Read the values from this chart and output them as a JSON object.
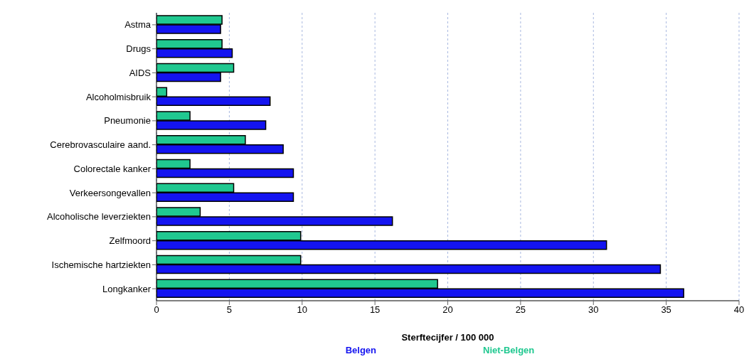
{
  "chart_data": {
    "type": "bar",
    "orientation": "horizontal",
    "xlabel": "Sterftecijfer / 100 000",
    "categories": [
      "Astma",
      "Drugs",
      "AIDS",
      "Alcoholmisbruik",
      "Pneumonie",
      "Cerebrovasculaire aand.",
      "Colorectale kanker",
      "Verkeersongevallen",
      "Alcoholische leverziekten",
      "Zelfmoord",
      "Ischemische hartziekten",
      "Longkanker"
    ],
    "series": [
      {
        "name": "Belgen",
        "color": "#1414f0",
        "values": [
          4.4,
          5.2,
          4.4,
          7.8,
          7.5,
          8.7,
          9.4,
          9.4,
          16.2,
          30.9,
          34.6,
          36.2
        ]
      },
      {
        "name": "Niet-Belgen",
        "color": "#20c890",
        "values": [
          4.5,
          4.5,
          5.3,
          0.7,
          2.3,
          6.1,
          2.3,
          5.3,
          3.0,
          9.9,
          9.9,
          19.3
        ]
      }
    ],
    "xlim": [
      0,
      40
    ],
    "xticks": [
      0,
      5,
      10,
      15,
      20,
      25,
      30,
      35,
      40
    ],
    "grid": "x",
    "legend": "bottom"
  }
}
